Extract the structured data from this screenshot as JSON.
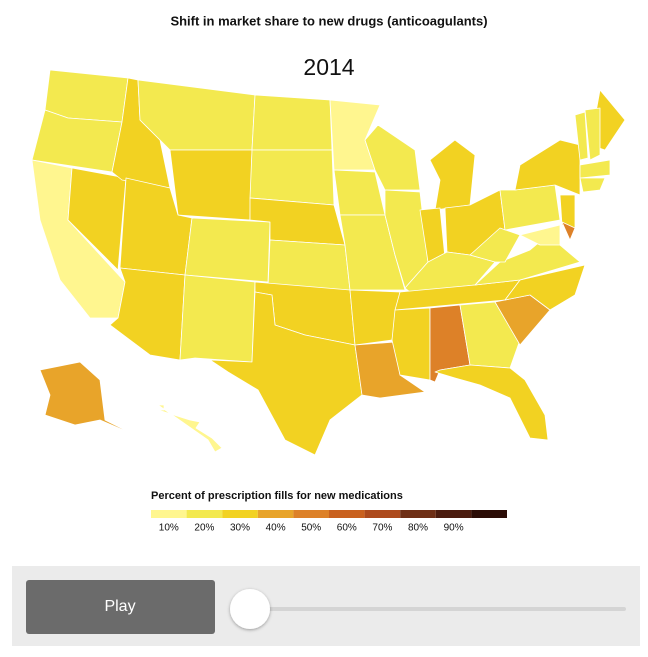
{
  "chart_data": {
    "type": "choropleth",
    "title": "Shift in market share to new drugs (anticoagulants)",
    "subtitle": "2014",
    "values": [
      15,
      15,
      5,
      25,
      25,
      15,
      25,
      25,
      25,
      15,
      15,
      15,
      15,
      25,
      15,
      25,
      25,
      5,
      15,
      15,
      25,
      35,
      15,
      15,
      25,
      25,
      25,
      15,
      25,
      25,
      45,
      15,
      25,
      35,
      25,
      15,
      15,
      15,
      25,
      25,
      15,
      15,
      15,
      15,
      25,
      5,
      45,
      35,
      5
    ],
    "legend": {
      "title": "Percent of prescription fills for new medications",
      "colors": [
        "#fff68f",
        "#f3e94f",
        "#f2d222",
        "#e8a42a",
        "#dd8128",
        "#c9611f",
        "#ad4a1d",
        "#6e2f16",
        "#4b1c0f",
        "#2b0c06"
      ],
      "ticks": [
        {
          "value": 10,
          "label": "10%"
        },
        {
          "value": 20,
          "label": "20%"
        },
        {
          "value": 30,
          "label": "30%"
        },
        {
          "value": 40,
          "label": "40%"
        },
        {
          "value": 50,
          "label": "50%"
        },
        {
          "value": 60,
          "label": "60%"
        },
        {
          "value": 70,
          "label": "70%"
        },
        {
          "value": 80,
          "label": "80%"
        },
        {
          "value": 90,
          "label": "90%"
        }
      ]
    }
  },
  "controls": {
    "play": "Play"
  }
}
